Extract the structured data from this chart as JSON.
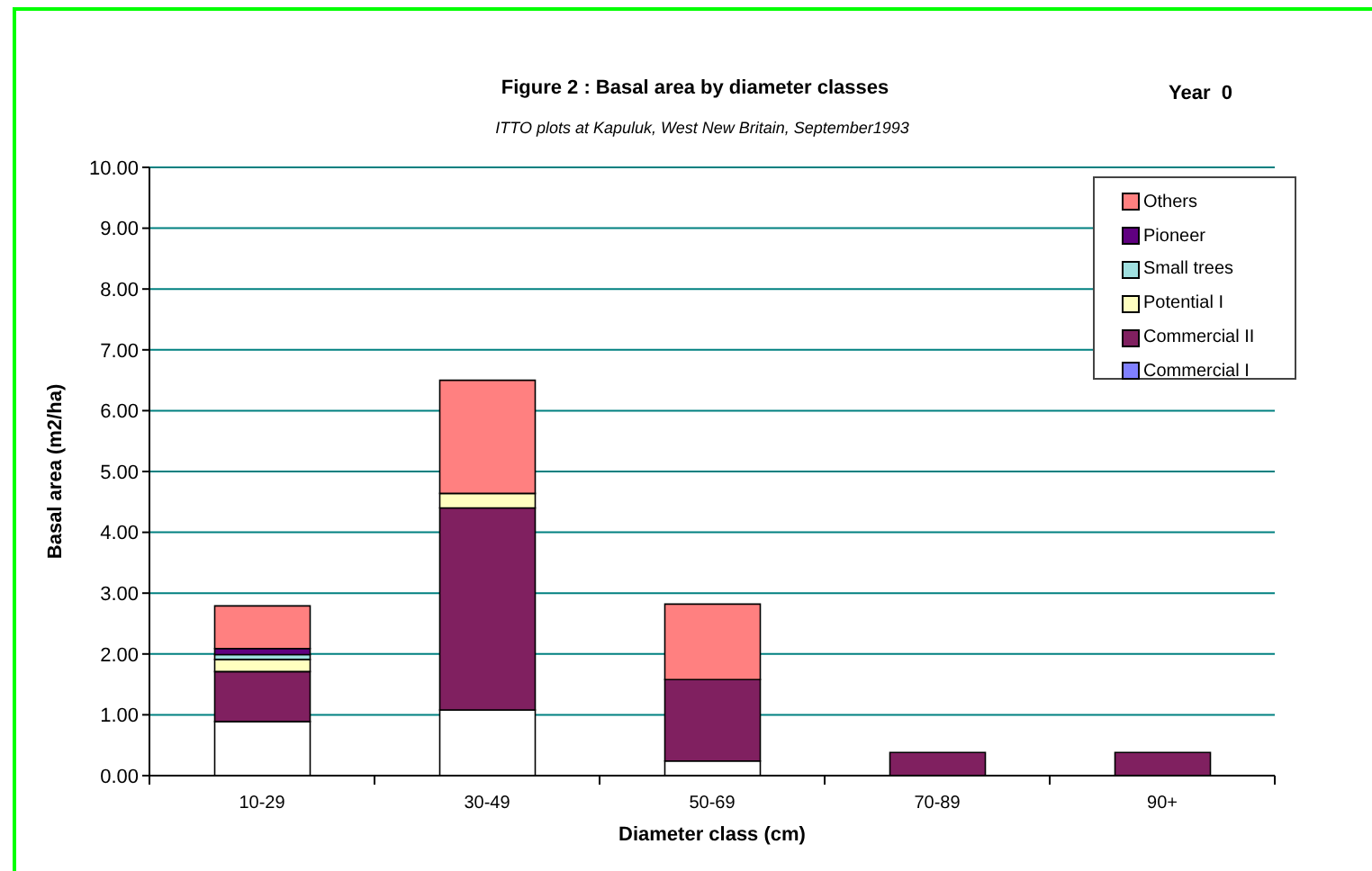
{
  "chart_data": {
    "type": "bar",
    "title": "Figure 2 : Basal area by diameter classes",
    "subtitle": "ITTO plots at Kapuluk, West New Britain, September1993",
    "xlabel": "Diameter class (cm)",
    "ylabel": "Basal area (m2/ha)",
    "annotations": [
      "Year  0"
    ],
    "categories": [
      "10-29",
      "30-49",
      "50-69",
      "70-89",
      "90+"
    ],
    "stacked": true,
    "series": [
      {
        "color": "#ffffff",
        "values": [
          0.89,
          1.08,
          0.24,
          0,
          0
        ]
      },
      {
        "name": "Commercial I",
        "color": "#8080ff",
        "values": [
          0,
          0,
          0,
          0,
          0
        ]
      },
      {
        "name": "Commercial II",
        "color": "#802060",
        "values": [
          0.82,
          3.32,
          1.34,
          0.38,
          0.38
        ]
      },
      {
        "name": "Potential I",
        "color": "#ffffc0",
        "values": [
          0.2,
          0.24,
          0,
          0,
          0
        ]
      },
      {
        "name": "Small trees",
        "color": "#a0e0e0",
        "values": [
          0.08,
          0,
          0,
          0,
          0
        ]
      },
      {
        "name": "Pioneer",
        "color": "#600080",
        "values": [
          0.1,
          0,
          0,
          0,
          0
        ]
      },
      {
        "name": "Others",
        "color": "#ff8080",
        "values": [
          0.7,
          1.86,
          1.24,
          0,
          0
        ]
      }
    ],
    "ylim": [
      0,
      10
    ],
    "yticks": [
      {
        "value": 0,
        "label": "0.00"
      },
      {
        "value": 1,
        "label": "1.00"
      },
      {
        "value": 2,
        "label": "2.00"
      },
      {
        "value": 3,
        "label": "3.00"
      },
      {
        "value": 4,
        "label": "4.00"
      },
      {
        "value": 5,
        "label": "5.00"
      },
      {
        "value": 6,
        "label": "6.00"
      },
      {
        "value": 7,
        "label": "7.00"
      },
      {
        "value": 8,
        "label": "8.00"
      },
      {
        "value": 9,
        "label": "9.00"
      },
      {
        "value": 10,
        "label": "10.00"
      }
    ],
    "grid": "y",
    "legend": "top right"
  }
}
